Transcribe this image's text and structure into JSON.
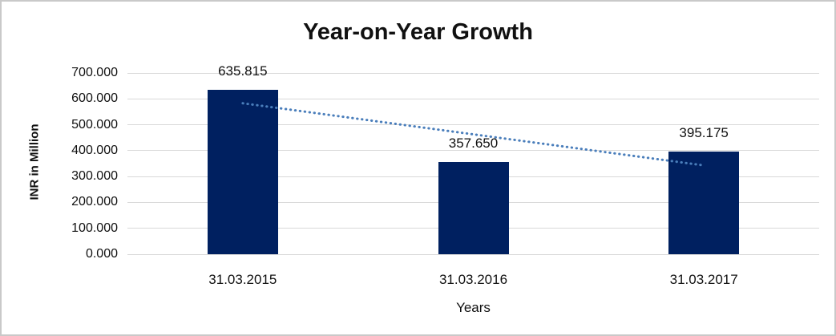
{
  "chart_data": {
    "type": "bar",
    "title": "Year-on-Year Growth",
    "xlabel": "Years",
    "ylabel": "INR in Million",
    "categories": [
      "31.03.2015",
      "31.03.2016",
      "31.03.2017"
    ],
    "values": [
      635.815,
      357.65,
      395.175
    ],
    "value_labels": [
      "635.815",
      "357.650",
      "395.175"
    ],
    "ylim": [
      0,
      700
    ],
    "ytick_step": 100,
    "ytick_labels": [
      "0.000",
      "100.000",
      "200.000",
      "300.000",
      "400.000",
      "500.000",
      "600.000",
      "700.000"
    ],
    "grid": true,
    "legend": "none",
    "bar_color": "#002060",
    "gridline_color": "#d9d9d9",
    "trendline": {
      "style": "dotted",
      "color": "#4a7ebb",
      "start_value": 583,
      "end_value": 343
    }
  }
}
